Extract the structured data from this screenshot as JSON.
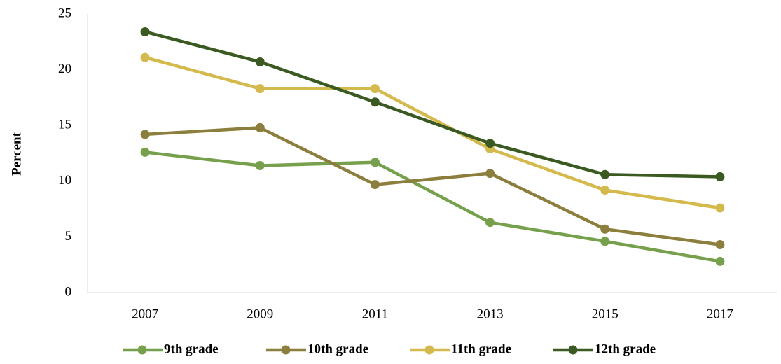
{
  "chart_data": {
    "type": "line",
    "y_label": "Percent",
    "categories": [
      "2007",
      "2009",
      "2011",
      "2013",
      "2015",
      "2017"
    ],
    "series": [
      {
        "name": "9th grade",
        "color": "#76a04c",
        "values": [
          12.6,
          11.4,
          11.7,
          6.3,
          4.6,
          2.8
        ]
      },
      {
        "name": "10th grade",
        "color": "#8c7e3c",
        "values": [
          14.2,
          14.8,
          9.7,
          10.7,
          5.7,
          4.3
        ]
      },
      {
        "name": "11th grade",
        "color": "#d4b94c",
        "values": [
          21.1,
          18.3,
          18.3,
          12.9,
          9.2,
          7.6
        ]
      },
      {
        "name": "12th grade",
        "color": "#3a5a22",
        "values": [
          23.4,
          20.7,
          17.1,
          13.4,
          10.6,
          10.4
        ]
      }
    ],
    "ylim": [
      0,
      25
    ],
    "yticks": [
      0,
      5,
      10,
      15,
      20,
      25
    ],
    "grid": false,
    "legend": "bottom"
  }
}
